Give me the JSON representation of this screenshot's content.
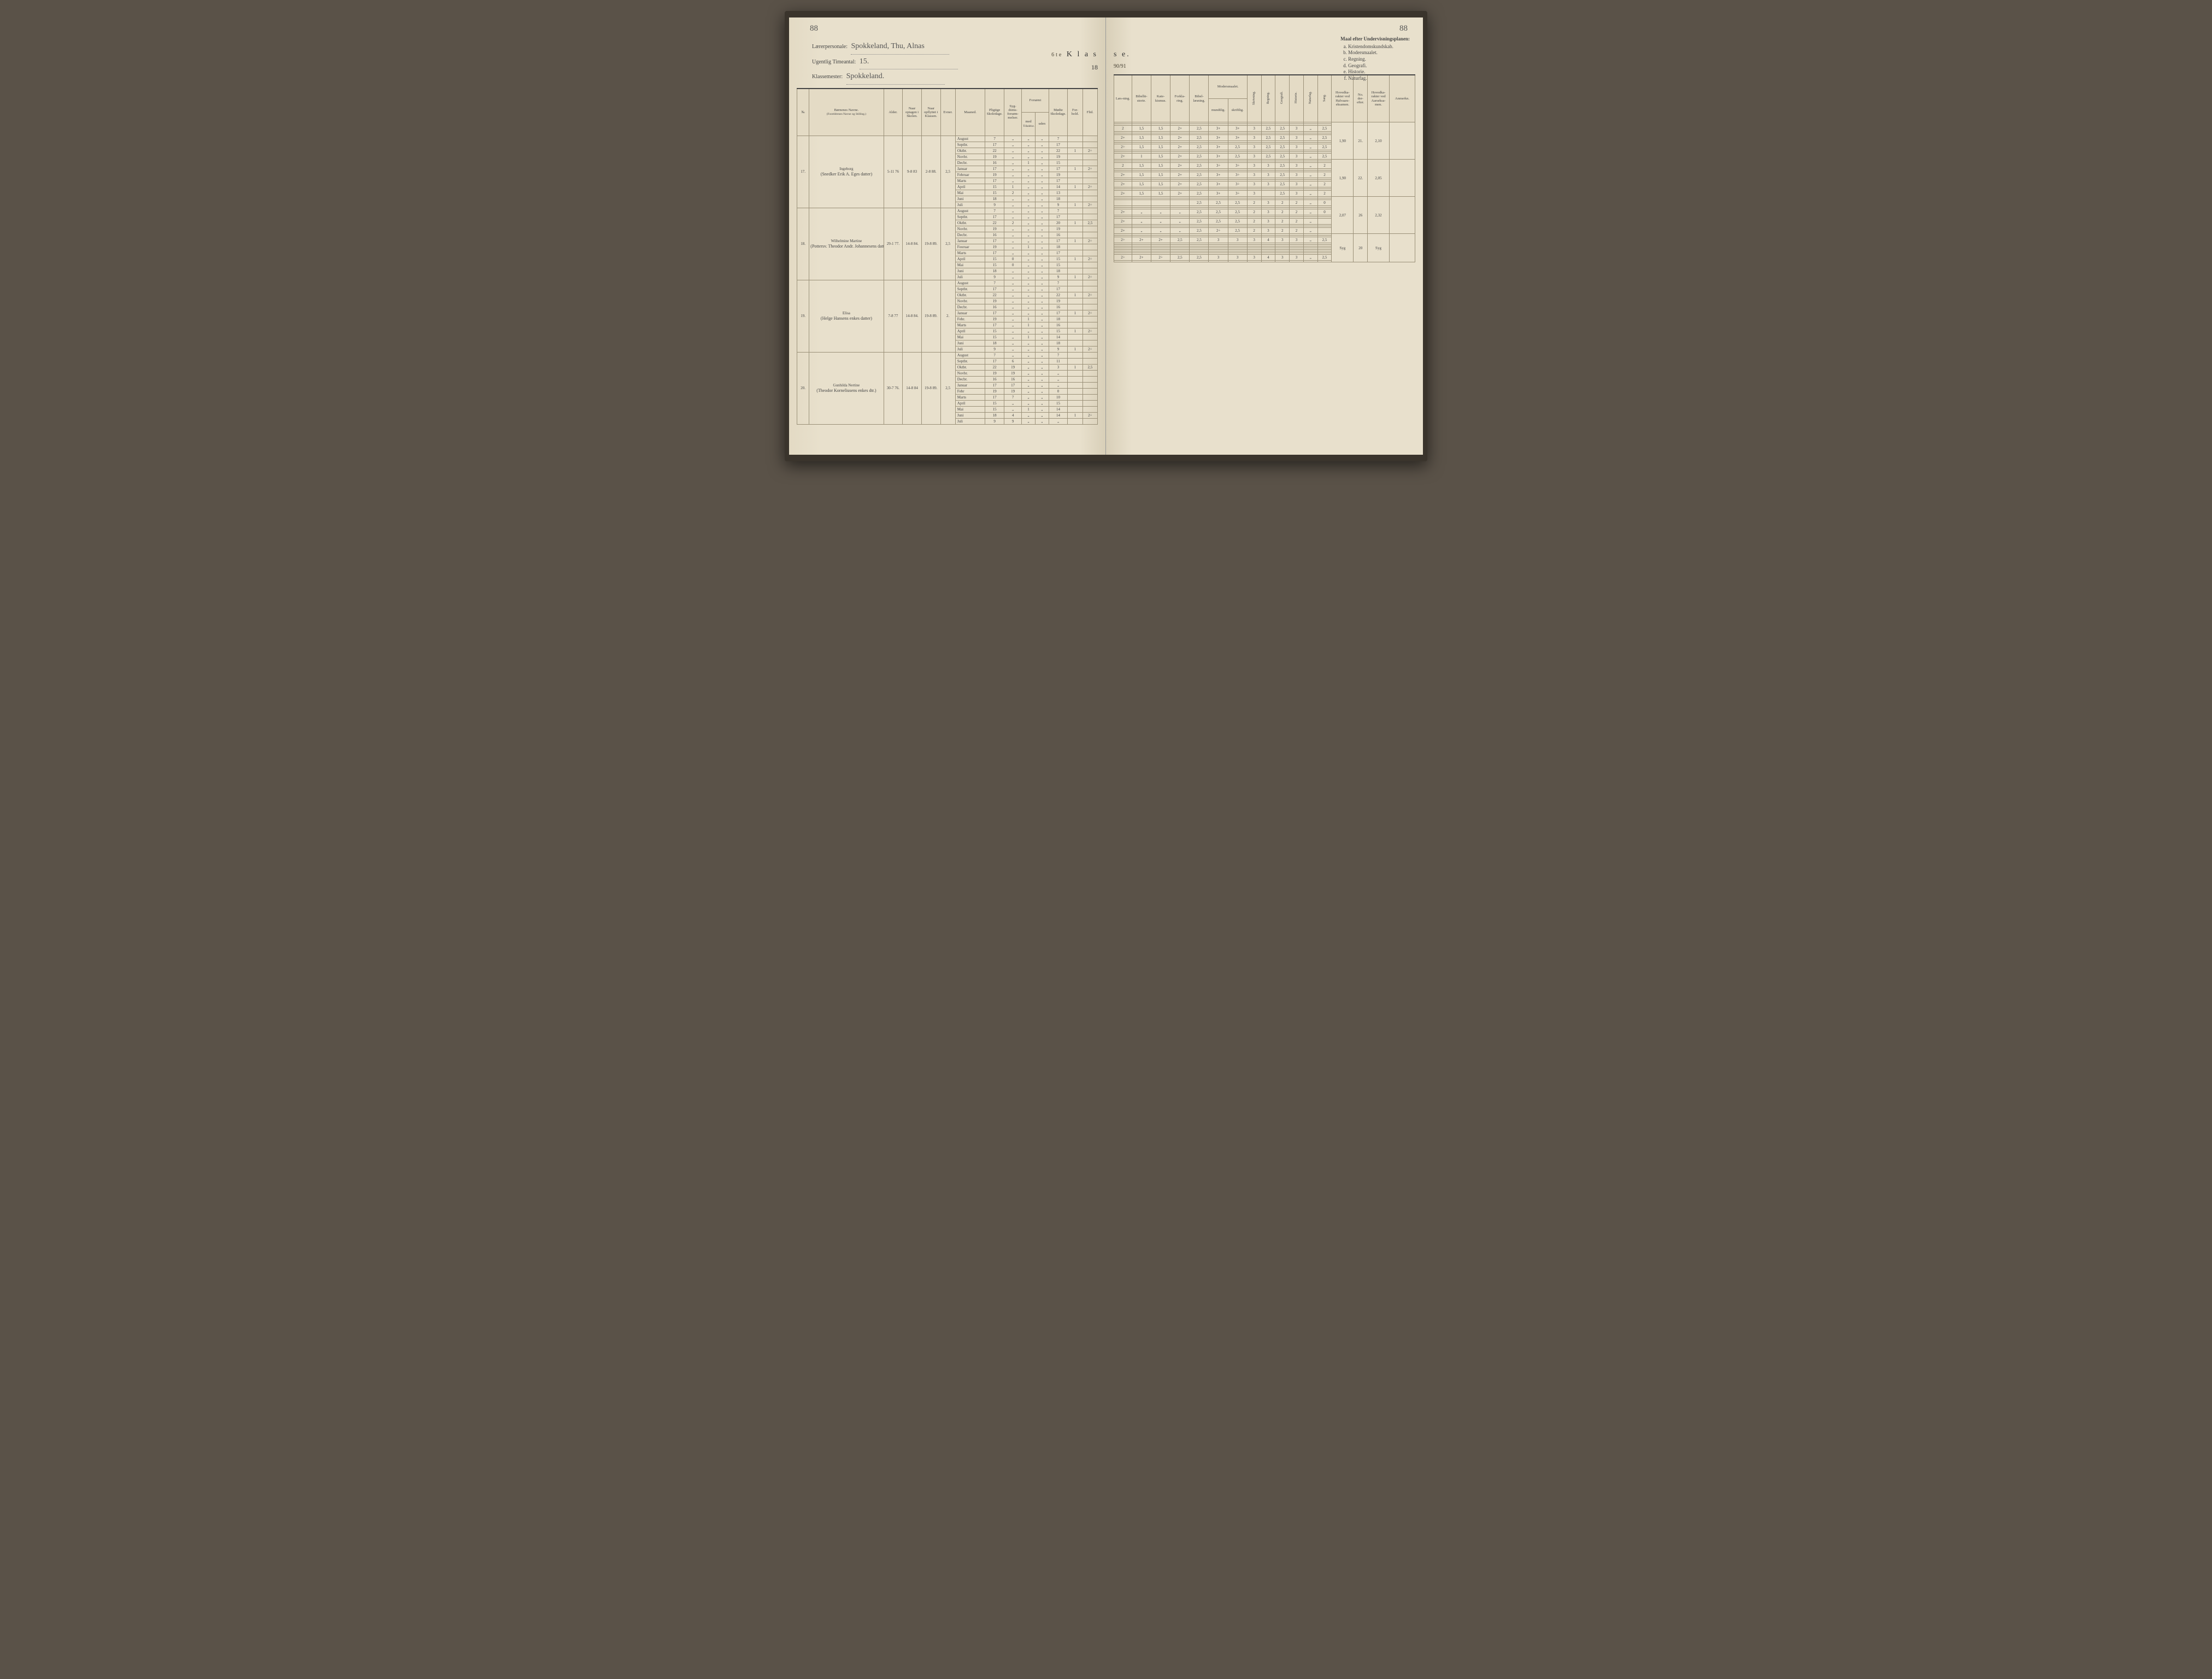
{
  "page_number_left": "88",
  "page_number_right": "88",
  "header_left": {
    "laererpersonale_label": "Lærerpersonale:",
    "laererpersonale_value": "Spokkeland, Thu, Alnas",
    "timeantal_label": "Ugentlig Timeantal:",
    "timeantal_value": "15.",
    "klassemester_label": "Klassemester:",
    "klassemester_value": "Spokkeland."
  },
  "klasse_title_left": "K l a s",
  "klasse_title_right": "s e.",
  "klasse_prefix": "6te",
  "year_left": "18",
  "year_right": "90/91",
  "maal": {
    "title": "Maal efter Undervisningsplanen:",
    "items": [
      "Kristendomskundskab.",
      "Modersmaalet.",
      "Regning.",
      "Geografi.",
      "Historie.",
      "Naturfag."
    ]
  },
  "columns_left": {
    "no": "№",
    "name": "Børnenes Navne.",
    "name_sub": "(Forældrenes Navne og Stilling.)",
    "alder": "Alder.",
    "optagen": "Naar optagen i Skolen.",
    "opflyttet": "Naar opflyttet i Klassen.",
    "evner": "Evner.",
    "maaned": "Maaned.",
    "pligtige": "Pligtige Skoledage.",
    "syg": "Syg-doms-forsøm-melser.",
    "forsomt_med": "med",
    "forsomt_uden": "uden",
    "forsomt": "Forsømt",
    "tilladelse": "Tilladelse.",
    "modte": "Mødte Skoledage.",
    "forhold": "For-hold.",
    "flid": "Flid."
  },
  "columns_right": {
    "laesning": "Læs-ning.",
    "bibelhist": "Bibelhi-storie.",
    "katekismus": "Kate-kismus.",
    "forklaring": "Forkla-ring.",
    "bibellaesning": "Bibel-læsning.",
    "modersmaalet": "Modersmaalet.",
    "mundtlig": "mundtlig.",
    "skriftlig": "skriftlig.",
    "skrivning": "Skrivning.",
    "regning": "Regning.",
    "geografi": "Geografi.",
    "historie": "Historie.",
    "naturfag": "Naturfag.",
    "sang": "Sang.",
    "hovedkar_halv": "Hovedka-rakter ved Halvaars-eksamen.",
    "no_der": "No. der-efter.",
    "hovedkar_aars": "Hovedka-rakter ved Aarseksa-men.",
    "anmerkn": "Anmerkn."
  },
  "months": [
    "August",
    "Septbr.",
    "Oktbr.",
    "Novbr.",
    "Decbr.",
    "Januar",
    "Februar",
    "Marts",
    "April",
    "Mai",
    "Juni",
    "Juli"
  ],
  "students": [
    {
      "no": "17.",
      "name": "Ingeborg",
      "parent": "(Snedker Erik A. Eges datter)",
      "alder": "5-11 76",
      "optagen": "9-8 83",
      "opflyttet": "2-8 88.",
      "evner": "2,5",
      "rows": [
        {
          "m": "August",
          "p": "7",
          "s": "„",
          "fm": "„",
          "fu": "„",
          "md": "7",
          "fh": "",
          "fl": ""
        },
        {
          "m": "Septbr.",
          "p": "17",
          "s": "„",
          "fm": "„",
          "fu": "„",
          "md": "17",
          "fh": "",
          "fl": ""
        },
        {
          "m": "Oktbr.",
          "p": "22",
          "s": "„",
          "fm": "„",
          "fu": "„",
          "md": "22",
          "fh": "1",
          "fl": "2÷",
          "r": [
            "2",
            "1,5",
            "1,5",
            "2+",
            "2,5",
            "3+",
            "3+",
            "3",
            "2,5",
            "2,5",
            "3",
            "„",
            "2,5"
          ]
        },
        {
          "m": "Novbr.",
          "p": "19",
          "s": "„",
          "fm": "„",
          "fu": "„",
          "md": "19",
          "fh": "",
          "fl": ""
        },
        {
          "m": "Decbr.",
          "p": "16",
          "s": "„",
          "fm": "1",
          "fu": "„",
          "md": "15",
          "fh": "",
          "fl": ""
        },
        {
          "m": "Januar",
          "p": "17",
          "s": "„",
          "fm": "„",
          "fu": "„",
          "md": "17",
          "fh": "1",
          "fl": "2÷",
          "r": [
            "2+",
            "1,5",
            "1,5",
            "2+",
            "2,5",
            "3+",
            "3+",
            "3",
            "2,5",
            "2,5",
            "3",
            "„",
            "2,5"
          ],
          "halv": "1,90",
          "noefter": "21."
        },
        {
          "m": "Februar",
          "p": "19",
          "s": "„",
          "fm": "„",
          "fu": "„",
          "md": "19",
          "fh": "",
          "fl": ""
        },
        {
          "m": "Marts",
          "p": "17",
          "s": "„",
          "fm": "„",
          "fu": "„",
          "md": "17",
          "fh": "",
          "fl": ""
        },
        {
          "m": "April",
          "p": "15",
          "s": "1",
          "fm": "„",
          "fu": "„",
          "md": "14",
          "fh": "1",
          "fl": "2÷",
          "r": [
            "2÷",
            "1,5",
            "1,5",
            "2+",
            "2,5",
            "3+",
            "2,5",
            "3",
            "2,5",
            "2,5",
            "3",
            "„",
            "2,5"
          ]
        },
        {
          "m": "Mai",
          "p": "15",
          "s": "2",
          "fm": "„",
          "fu": "„",
          "md": "13",
          "fh": "",
          "fl": ""
        },
        {
          "m": "Juni",
          "p": "18",
          "s": "„",
          "fm": "„",
          "fu": "„",
          "md": "18",
          "fh": "",
          "fl": ""
        },
        {
          "m": "Juli",
          "p": "9",
          "s": "„",
          "fm": "„",
          "fu": "„",
          "md": "9",
          "fh": "1",
          "fl": "2÷",
          "r": [
            "2+",
            "1",
            "1,5",
            "2+",
            "2,5",
            "3+",
            "2,5",
            "3",
            "2,5",
            "2,5",
            "3",
            "„",
            "2,5"
          ],
          "aars": "2,10"
        }
      ]
    },
    {
      "no": "18.",
      "name": "Wilhelmine Martine",
      "parent": "(Pottersv. Theodor Andr. Johannesens datter)",
      "alder": "29-1 77.",
      "optagen": "14-8 84.",
      "opflyttet": "19-8 89.",
      "evner": "2,5",
      "rows": [
        {
          "m": "August",
          "p": "7",
          "s": "„",
          "fm": "„",
          "fu": "„",
          "md": "7",
          "fh": "",
          "fl": ""
        },
        {
          "m": "Septbr.",
          "p": "17",
          "s": "„",
          "fm": "„",
          "fu": "„",
          "md": "17",
          "fh": "",
          "fl": ""
        },
        {
          "m": "Oktbr.",
          "p": "22",
          "s": "2",
          "fm": "„",
          "fu": "„",
          "md": "20",
          "fh": "1",
          "fl": "2,5",
          "r": [
            "2",
            "1,5",
            "1,5",
            "2+",
            "2,5",
            "3÷",
            "3÷",
            "3",
            "3",
            "2,5",
            "3",
            "„",
            "2"
          ]
        },
        {
          "m": "Novbr.",
          "p": "19",
          "s": "„",
          "fm": "„",
          "fu": "„",
          "md": "19",
          "fh": "",
          "fl": ""
        },
        {
          "m": "Decbr.",
          "p": "16",
          "s": "„",
          "fm": "„",
          "fu": "„",
          "md": "16",
          "fh": "",
          "fl": ""
        },
        {
          "m": "Januar",
          "p": "17",
          "s": "„",
          "fm": "„",
          "fu": "„",
          "md": "17",
          "fh": "1",
          "fl": "2÷",
          "r": [
            "2+",
            "1,5",
            "1,5",
            "2+",
            "2,5",
            "3+",
            "3÷",
            "3",
            "3",
            "2,5",
            "3",
            "„",
            "2"
          ],
          "halv": "1,90",
          "noefter": "22."
        },
        {
          "m": "Feoruar",
          "p": "19",
          "s": "„",
          "fm": "1",
          "fu": "„",
          "md": "18",
          "fh": "",
          "fl": ""
        },
        {
          "m": "Marts",
          "p": "17",
          "s": "„",
          "fm": "„",
          "fu": "„",
          "md": "17",
          "fh": "",
          "fl": ""
        },
        {
          "m": "April",
          "p": "15",
          "s": "0",
          "fm": "„",
          "fu": "„",
          "md": "15",
          "fh": "1",
          "fl": "2÷",
          "r": [
            "2+",
            "1,5",
            "1,5",
            "2+",
            "2,5",
            "3+",
            "3÷",
            "3",
            "3",
            "2,5",
            "3",
            "„",
            "2"
          ]
        },
        {
          "m": "Mai",
          "p": "15",
          "s": "0",
          "fm": "„",
          "fu": "„",
          "md": "15",
          "fh": "",
          "fl": ""
        },
        {
          "m": "Juni",
          "p": "18",
          "s": "„",
          "fm": "„",
          "fu": "„",
          "md": "18",
          "fh": "",
          "fl": ""
        },
        {
          "m": "Juli",
          "p": "9",
          "s": "„",
          "fm": "„",
          "fu": "„",
          "md": "9",
          "fh": "1",
          "fl": "2÷",
          "r": [
            "2+",
            "1,5",
            "1,5",
            "2+",
            "2,5",
            "3+",
            "3÷",
            "3",
            "",
            "2,5",
            "3",
            "„",
            "2"
          ],
          "aars": "2,05"
        }
      ]
    },
    {
      "no": "19.",
      "name": "Elisa",
      "parent": "(Helge Hansens enkes datter)",
      "alder": "7-8 77",
      "optagen": "14-8 84.",
      "opflyttet": "19-8 89.",
      "evner": "2.",
      "rows": [
        {
          "m": "August",
          "p": "7",
          "s": "„",
          "fm": "„",
          "fu": "„",
          "md": "7",
          "fh": "",
          "fl": ""
        },
        {
          "m": "Septbr.",
          "p": "17",
          "s": "„",
          "fm": "„",
          "fu": "„",
          "md": "17",
          "fh": "",
          "fl": ""
        },
        {
          "m": "Oktbr.",
          "p": "22",
          "s": "„",
          "fm": "„",
          "fu": "„",
          "md": "22",
          "fh": "1",
          "fl": "2÷",
          "r": [
            "",
            "",
            "",
            "",
            "2,5",
            "2,5",
            "2,5",
            "2",
            "3",
            "2",
            "2",
            "„",
            "0"
          ]
        },
        {
          "m": "Novbr.",
          "p": "19",
          "s": "„",
          "fm": "„",
          "fu": "„",
          "md": "19",
          "fh": "",
          "fl": ""
        },
        {
          "m": "Decbr.",
          "p": "16",
          "s": "„",
          "fm": "„",
          "fu": "„",
          "md": "16",
          "fh": "",
          "fl": ""
        },
        {
          "m": "Januar",
          "p": "17",
          "s": "„",
          "fm": "„",
          "fu": "„",
          "md": "17",
          "fh": "1",
          "fl": "2÷",
          "r": [
            "2+",
            "„",
            "„",
            "„",
            "2,5",
            "2,5",
            "2,5",
            "2",
            "3",
            "2",
            "2",
            "„",
            "0"
          ],
          "halv": "2,07",
          "noefter": "26"
        },
        {
          "m": "Febr.",
          "p": "19",
          "s": "„",
          "fm": "1",
          "fu": "„",
          "md": "18",
          "fh": "",
          "fl": ""
        },
        {
          "m": "Marts",
          "p": "17",
          "s": "„",
          "fm": "1",
          "fu": "„",
          "md": "16",
          "fh": "",
          "fl": ""
        },
        {
          "m": "April",
          "p": "15",
          "s": "„",
          "fm": "„",
          "fu": "„",
          "md": "15",
          "fh": "1",
          "fl": "2÷",
          "r": [
            "2+",
            "„",
            "„",
            "„",
            "2,5",
            "2,5",
            "2,5",
            "2",
            "3",
            "2",
            "2",
            "„",
            ""
          ]
        },
        {
          "m": "Mai",
          "p": "15",
          "s": "„",
          "fm": "1",
          "fu": "„",
          "md": "14",
          "fh": "",
          "fl": ""
        },
        {
          "m": "Juni",
          "p": "18",
          "s": "„",
          "fm": "„",
          "fu": "„",
          "md": "18",
          "fh": "",
          "fl": ""
        },
        {
          "m": "Juli",
          "p": "9",
          "s": "„",
          "fm": "„",
          "fu": "„",
          "md": "9",
          "fh": "1",
          "fl": "2÷",
          "r": [
            "2+",
            "„",
            "„",
            "„",
            "2,5",
            "2÷",
            "2,5",
            "2",
            "3",
            "2",
            "2",
            "„",
            ""
          ],
          "aars": "2,32"
        }
      ]
    },
    {
      "no": "20.",
      "name": "Gunhilda Nertine",
      "parent": "(Theodor Korneliusens enkes dtr.)",
      "alder": "30-7 76.",
      "optagen": "14-8 84",
      "opflyttet": "19-8 89.",
      "evner": "2,5",
      "rows": [
        {
          "m": "August",
          "p": "7",
          "s": "„",
          "fm": "„",
          "fu": "„",
          "md": "7",
          "fh": "",
          "fl": ""
        },
        {
          "m": "Septbr.",
          "p": "17",
          "s": "6",
          "fm": "„",
          "fu": "„",
          "md": "11",
          "fh": "",
          "fl": ""
        },
        {
          "m": "Oktbr.",
          "p": "22",
          "s": "19",
          "fm": "„",
          "fu": "„",
          "md": "3",
          "fh": "1",
          "fl": "2,5",
          "r": [
            "2÷",
            "2+",
            "2+",
            "2,5",
            "2,5",
            "3",
            "3",
            "3",
            "4",
            "3",
            "3",
            "„",
            "2,5"
          ]
        },
        {
          "m": "Novbr.",
          "p": "19",
          "s": "19",
          "fm": "„",
          "fu": "„",
          "md": "„",
          "fh": "",
          "fl": ""
        },
        {
          "m": "Decbr.",
          "p": "16",
          "s": "16",
          "fm": "„",
          "fu": "„",
          "md": "„",
          "fh": "",
          "fl": ""
        },
        {
          "m": "Januar",
          "p": "17",
          "s": "17",
          "fm": "„",
          "fu": "„",
          "md": "„",
          "fh": "",
          "fl": "",
          "halv": "Syg",
          "noefter": "20"
        },
        {
          "m": "Febr",
          "p": "19",
          "s": "19",
          "fm": "„",
          "fu": "„",
          "md": "0",
          "fh": "",
          "fl": ""
        },
        {
          "m": "Marts",
          "p": "17",
          "s": "7",
          "fm": "„",
          "fu": "„",
          "md": "10",
          "fh": "",
          "fl": ""
        },
        {
          "m": "April",
          "p": "15",
          "s": "„",
          "fm": "„",
          "fu": "„",
          "md": "15",
          "fh": "",
          "fl": ""
        },
        {
          "m": "Mai",
          "p": "15",
          "s": "„",
          "fm": "1",
          "fu": "„",
          "md": "14",
          "fh": "",
          "fl": ""
        },
        {
          "m": "Juni",
          "p": "18",
          "s": "4",
          "fm": "„",
          "fu": "„",
          "md": "14",
          "fh": "1",
          "fl": "2÷",
          "r": [
            "2÷",
            "2+",
            "2÷",
            "2,5",
            "2,5",
            "3",
            "3",
            "3",
            "4",
            "3",
            "3",
            "„",
            "2,5"
          ]
        },
        {
          "m": "Juli",
          "p": "9",
          "s": "9",
          "fm": "„",
          "fu": "„",
          "md": "„",
          "fh": "",
          "fl": "",
          "aars": "Syg"
        }
      ]
    }
  ],
  "colors": {
    "paper": "#e8e0cc",
    "ink": "#4a4436",
    "rule": "#9a9078",
    "background": "#5a5248"
  }
}
